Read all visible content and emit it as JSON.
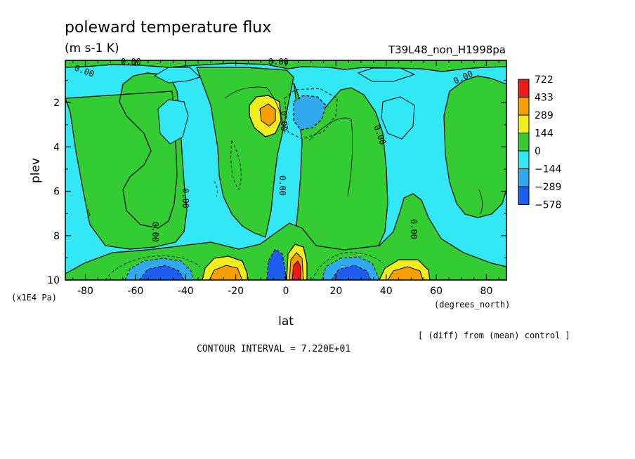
{
  "chart_data": {
    "type": "contour",
    "title": "poleward temperature flux",
    "units": "(m s-1 K)",
    "run_label": "T39L48_non_H1998pa",
    "xlabel": "lat",
    "xunits": "(degrees_north)",
    "ylabel": "plev",
    "yunits": "(x1E4 Pa)",
    "xlim": [
      -88,
      88
    ],
    "ylim": [
      10,
      0.1
    ],
    "xticks": [
      -80,
      -60,
      -40,
      -20,
      0,
      20,
      40,
      60,
      80
    ],
    "yticks": [
      2,
      4,
      6,
      8,
      10
    ],
    "note": "[ (diff) from (mean) control ]",
    "contour_interval": "CONTOUR INTERVAL = 7.220E+01",
    "zero_label": "0.00",
    "legend": {
      "levels": [
        "722",
        "433",
        "289",
        "144",
        "0",
        "−144",
        "−289",
        "−578"
      ],
      "colors": [
        "#ee1a1a",
        "#f5a000",
        "#f2ee1e",
        "#33cc33",
        "#32e8f4",
        "#32a8ee",
        "#1f5cf0"
      ]
    },
    "features": [
      {
        "lat": -7,
        "plev": 2.5,
        "value": 289
      },
      {
        "lat": 7,
        "plev": 2.6,
        "value": -289
      },
      {
        "lat": 5,
        "plev": 9.6,
        "value": 722
      },
      {
        "lat": -3,
        "plev": 9.6,
        "value": -433
      },
      {
        "lat": -25,
        "plev": 9.6,
        "value": 433
      },
      {
        "lat": 45,
        "plev": 9.6,
        "value": 433
      },
      {
        "lat": -48,
        "plev": 9.6,
        "value": -433
      },
      {
        "lat": 28,
        "plev": 9.6,
        "value": -433
      }
    ]
  }
}
